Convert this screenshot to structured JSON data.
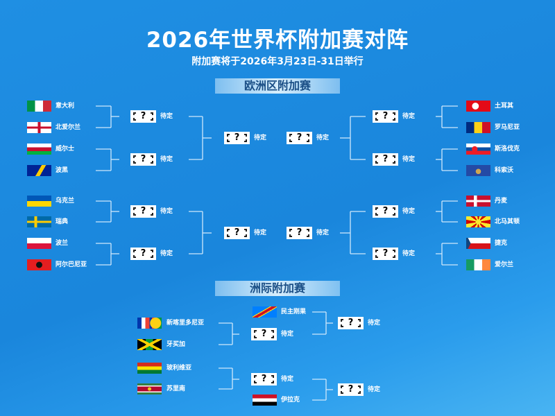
{
  "title": "2026年世界杯附加赛对阵",
  "subtitle": "附加赛将于2026年3月23日-31日举行",
  "placeholder_mark": "?",
  "tbd_label": "待定",
  "europe": {
    "section_label": "欧洲区附加赛",
    "left_teams": [
      {
        "name": "意大利",
        "flag": "italy"
      },
      {
        "name": "北爱尔兰",
        "flag": "northern-ireland"
      },
      {
        "name": "威尔士",
        "flag": "wales"
      },
      {
        "name": "波黑",
        "flag": "bosnia"
      },
      {
        "name": "乌克兰",
        "flag": "ukraine"
      },
      {
        "name": "瑞典",
        "flag": "sweden"
      },
      {
        "name": "波兰",
        "flag": "poland"
      },
      {
        "name": "阿尔巴尼亚",
        "flag": "albania"
      }
    ],
    "right_teams": [
      {
        "name": "土耳其",
        "flag": "turkey"
      },
      {
        "name": "罗马尼亚",
        "flag": "romania"
      },
      {
        "name": "斯洛伐克",
        "flag": "slovakia"
      },
      {
        "name": "科索沃",
        "flag": "kosovo"
      },
      {
        "name": "丹麦",
        "flag": "denmark"
      },
      {
        "name": "北马其顿",
        "flag": "north-macedonia"
      },
      {
        "name": "捷克",
        "flag": "czechia"
      },
      {
        "name": "爱尔兰",
        "flag": "ireland"
      }
    ]
  },
  "intercontinental": {
    "section_label": "洲际附加赛",
    "teams": [
      {
        "name": "新喀里多尼亚",
        "flag": "new-caledonia"
      },
      {
        "name": "牙买加",
        "flag": "jamaica"
      },
      {
        "name": "玻利维亚",
        "flag": "bolivia"
      },
      {
        "name": "苏里南",
        "flag": "suriname"
      }
    ],
    "seeded": [
      {
        "name": "民主刚果",
        "flag": "dr-congo"
      },
      {
        "name": "伊拉克",
        "flag": "iraq"
      }
    ]
  },
  "colors": {
    "background": "#1e8de2",
    "section_text": "#1b4f86",
    "line": "#cfe8fb"
  }
}
